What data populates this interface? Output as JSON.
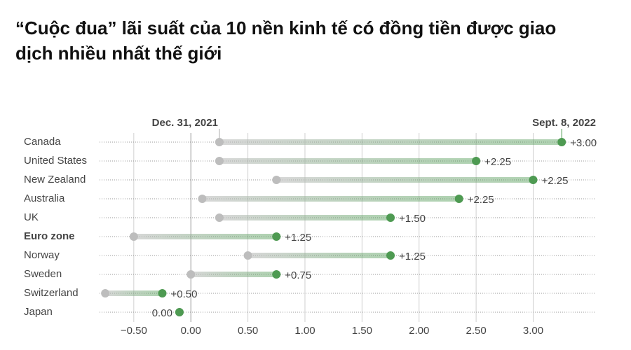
{
  "chart_data": {
    "type": "dumbbell",
    "title": "“Cuộc đua” lãi suất của 10 nền kinh tế có đồng tiền được giao dịch nhiều nhất thế giới",
    "categories": [
      "Canada",
      "United States",
      "New Zealand",
      "Australia",
      "UK",
      "Euro zone",
      "Norway",
      "Sweden",
      "Switzerland",
      "Japan"
    ],
    "highlight_index": 5,
    "series": [
      {
        "name": "Dec. 31, 2021",
        "color": "#bdbdbd",
        "values": [
          0.25,
          0.25,
          0.75,
          0.1,
          0.25,
          -0.5,
          0.5,
          0,
          -0.75,
          -0.1
        ]
      },
      {
        "name": "Sept. 8, 2022",
        "color": "#4e9a52",
        "values": [
          3.25,
          2.5,
          3.0,
          2.35,
          1.75,
          0.75,
          1.75,
          0.75,
          -0.25,
          -0.1
        ]
      }
    ],
    "changes": {
      "values": [
        3,
        2.25,
        2.25,
        2.25,
        1.5,
        1.25,
        1.25,
        0.75,
        0.5,
        0
      ],
      "value_labels": [
        "+3.00",
        "+2.25",
        "+2.25",
        "+2.25",
        "+1.50",
        "+1.25",
        "+1.25",
        "+0.75",
        "+0.50",
        "0.00"
      ]
    },
    "xlim": [
      -0.8,
      3.55
    ],
    "xticks": [
      {
        "value": -0.5,
        "label": "−0.50"
      },
      {
        "value": 0,
        "label": "0.00"
      },
      {
        "value": 0.5,
        "label": "0.50"
      },
      {
        "value": 1,
        "label": "1.00"
      },
      {
        "value": 1.5,
        "label": "1.50"
      },
      {
        "value": 2,
        "label": "2.00"
      },
      {
        "value": 2.5,
        "label": "2.50"
      },
      {
        "value": 3,
        "label": "3.00"
      }
    ],
    "grid": true
  }
}
